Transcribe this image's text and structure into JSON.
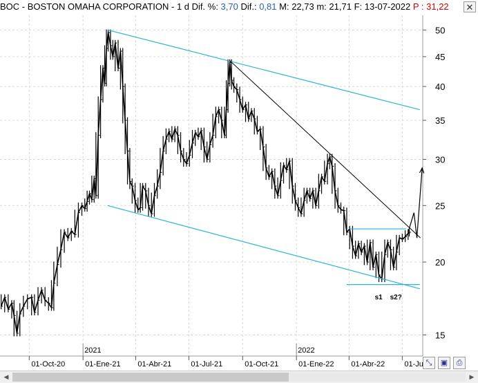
{
  "header": {
    "symbol": "BOC",
    "separator": " - ",
    "name": "BOSTON OMAHA CORPORATION",
    "sep2": " - ",
    "period": "1 d",
    "dif_pct_label": " Dif. %: ",
    "dif_pct_value": "3,70",
    "dif_label": " Dif.: ",
    "dif_value": "0,81",
    "m_label": " M: ",
    "m_value": "22,73",
    "m_label2": " m: ",
    "m2_value": "21,71",
    "f_label": " F: ",
    "f_value": "13-07-2022",
    "p_label": " P : ",
    "p_value": "31,22"
  },
  "colors": {
    "price": "#000000",
    "channel": "#2ab4d9",
    "trendline": "#000000",
    "grid": "#d8d8d8",
    "blue_value": "#2b5fb3",
    "red_value": "#d40000"
  },
  "icons": {
    "close": "close-icon",
    "zoom": "zoom-icon",
    "save": "save-icon",
    "print": "print-icon"
  },
  "chart_data": {
    "type": "line",
    "scale": "log",
    "ylim": [
      13.8,
      53
    ],
    "y_ticks": [
      15,
      20,
      25,
      30,
      35,
      40,
      45,
      50
    ],
    "y_tick_labels": [
      "15",
      "20",
      "25",
      "30",
      "35",
      "40",
      "45",
      "50"
    ],
    "xlim": [
      "2020-08-12",
      "2022-08-05"
    ],
    "x_ticks": [
      "2020-10-01",
      "2021-01-01",
      "2021-04-01",
      "2021-07-01",
      "2021-10-01",
      "2022-01-01",
      "2022-04-01",
      "2022-07-01"
    ],
    "x_tick_labels": [
      "01-Oct-20",
      "01-Ene-21",
      "01-Abr-21",
      "01-Jul-21",
      "01-Oct-21",
      "01-Ene-22",
      "01-Abr-22",
      "01-Ju"
    ],
    "year_markers": [
      {
        "date": "2021-01-01",
        "label": "2021"
      },
      {
        "date": "2022-01-01",
        "label": "2022"
      }
    ],
    "grid": true,
    "series": [
      {
        "points": [
          [
            "2020-08-14",
            16.8
          ],
          [
            "2020-08-20",
            17.4
          ],
          [
            "2020-08-26",
            16.6
          ],
          [
            "2020-09-01",
            17.0
          ],
          [
            "2020-09-05",
            16.2
          ],
          [
            "2020-09-10",
            15.1
          ],
          [
            "2020-09-15",
            16.3
          ],
          [
            "2020-09-21",
            16.8
          ],
          [
            "2020-09-28",
            17.3
          ],
          [
            "2020-10-05",
            17.4
          ],
          [
            "2020-10-10",
            16.4
          ],
          [
            "2020-10-16",
            17.2
          ],
          [
            "2020-10-22",
            17.9
          ],
          [
            "2020-10-28",
            17.2
          ],
          [
            "2020-11-03",
            17.0
          ],
          [
            "2020-11-08",
            16.7
          ],
          [
            "2020-11-12",
            18.4
          ],
          [
            "2020-11-18",
            19.8
          ],
          [
            "2020-11-24",
            21.0
          ],
          [
            "2020-11-30",
            22.5
          ],
          [
            "2020-12-06",
            22.0
          ],
          [
            "2020-12-12",
            22.6
          ],
          [
            "2020-12-18",
            22.3
          ],
          [
            "2020-12-24",
            24.3
          ],
          [
            "2020-12-30",
            25.0
          ],
          [
            "2021-01-04",
            24.7
          ],
          [
            "2021-01-08",
            25.4
          ],
          [
            "2021-01-12",
            26.2
          ],
          [
            "2021-01-16",
            25.6
          ],
          [
            "2021-01-20",
            27.8
          ],
          [
            "2021-01-23",
            26.0
          ],
          [
            "2021-01-27",
            33.0
          ],
          [
            "2021-01-31",
            38.0
          ],
          [
            "2021-02-04",
            43.0
          ],
          [
            "2021-02-07",
            40.5
          ],
          [
            "2021-02-10",
            46.5
          ],
          [
            "2021-02-13",
            49.5
          ],
          [
            "2021-02-17",
            47.0
          ],
          [
            "2021-02-21",
            45.0
          ],
          [
            "2021-02-25",
            47.5
          ],
          [
            "2021-03-02",
            43.0
          ],
          [
            "2021-03-06",
            46.0
          ],
          [
            "2021-03-10",
            40.0
          ],
          [
            "2021-03-14",
            35.0
          ],
          [
            "2021-03-18",
            31.0
          ],
          [
            "2021-03-22",
            27.5
          ],
          [
            "2021-03-26",
            27.0
          ],
          [
            "2021-03-31",
            25.5
          ],
          [
            "2021-04-05",
            24.6
          ],
          [
            "2021-04-09",
            24.8
          ],
          [
            "2021-04-13",
            27.0
          ],
          [
            "2021-04-18",
            26.5
          ],
          [
            "2021-04-23",
            25.0
          ],
          [
            "2021-04-28",
            24.2
          ],
          [
            "2021-05-03",
            26.0
          ],
          [
            "2021-05-08",
            27.0
          ],
          [
            "2021-05-13",
            28.5
          ],
          [
            "2021-05-18",
            31.0
          ],
          [
            "2021-05-23",
            32.5
          ],
          [
            "2021-05-28",
            33.5
          ],
          [
            "2021-06-02",
            32.5
          ],
          [
            "2021-06-07",
            33.8
          ],
          [
            "2021-06-12",
            33.0
          ],
          [
            "2021-06-17",
            31.0
          ],
          [
            "2021-06-22",
            30.0
          ],
          [
            "2021-06-27",
            29.5
          ],
          [
            "2021-07-02",
            30.5
          ],
          [
            "2021-07-07",
            32.0
          ],
          [
            "2021-07-12",
            33.3
          ],
          [
            "2021-07-17",
            32.8
          ],
          [
            "2021-07-22",
            33.6
          ],
          [
            "2021-07-27",
            31.5
          ],
          [
            "2021-08-01",
            30.0
          ],
          [
            "2021-08-06",
            31.8
          ],
          [
            "2021-08-11",
            33.0
          ],
          [
            "2021-08-16",
            35.5
          ],
          [
            "2021-08-21",
            36.5
          ],
          [
            "2021-08-26",
            35.0
          ],
          [
            "2021-08-31",
            33.0
          ],
          [
            "2021-09-03",
            36.5
          ],
          [
            "2021-09-06",
            40.5
          ],
          [
            "2021-09-09",
            44.0
          ],
          [
            "2021-09-12",
            41.0
          ],
          [
            "2021-09-16",
            40.0
          ],
          [
            "2021-09-21",
            39.5
          ],
          [
            "2021-09-26",
            38.0
          ],
          [
            "2021-10-01",
            36.5
          ],
          [
            "2021-10-06",
            37.2
          ],
          [
            "2021-10-11",
            35.2
          ],
          [
            "2021-10-16",
            36.3
          ],
          [
            "2021-10-21",
            35.2
          ],
          [
            "2021-10-26",
            33.5
          ],
          [
            "2021-10-31",
            33.8
          ],
          [
            "2021-11-05",
            31.5
          ],
          [
            "2021-11-10",
            29.0
          ],
          [
            "2021-11-15",
            28.0
          ],
          [
            "2021-11-20",
            28.6
          ],
          [
            "2021-11-25",
            27.0
          ],
          [
            "2021-11-30",
            26.0
          ],
          [
            "2021-12-05",
            27.6
          ],
          [
            "2021-12-10",
            29.3
          ],
          [
            "2021-12-15",
            28.8
          ],
          [
            "2021-12-20",
            29.8
          ],
          [
            "2021-12-25",
            27.0
          ],
          [
            "2021-12-30",
            25.5
          ],
          [
            "2022-01-04",
            24.8
          ],
          [
            "2022-01-09",
            24.2
          ],
          [
            "2022-01-14",
            25.5
          ],
          [
            "2022-01-19",
            26.5
          ],
          [
            "2022-01-24",
            25.7
          ],
          [
            "2022-01-29",
            26.5
          ],
          [
            "2022-02-03",
            25.0
          ],
          [
            "2022-02-08",
            26.5
          ],
          [
            "2022-02-13",
            28.0
          ],
          [
            "2022-02-18",
            27.5
          ],
          [
            "2022-02-23",
            29.5
          ],
          [
            "2022-02-27",
            30.3
          ],
          [
            "2022-03-03",
            29.2
          ],
          [
            "2022-03-08",
            26.5
          ],
          [
            "2022-03-13",
            25.0
          ],
          [
            "2022-03-18",
            24.6
          ],
          [
            "2022-03-23",
            24.5
          ],
          [
            "2022-03-28",
            22.5
          ],
          [
            "2022-04-02",
            22.8
          ],
          [
            "2022-04-07",
            21.3
          ],
          [
            "2022-04-12",
            20.5
          ],
          [
            "2022-04-17",
            21.5
          ],
          [
            "2022-04-22",
            20.8
          ],
          [
            "2022-04-27",
            21.3
          ],
          [
            "2022-05-02",
            20.0
          ],
          [
            "2022-05-07",
            21.6
          ],
          [
            "2022-05-12",
            19.6
          ],
          [
            "2022-05-17",
            20.6
          ],
          [
            "2022-05-22",
            19.0
          ],
          [
            "2022-05-27",
            18.7
          ],
          [
            "2022-06-01",
            20.6
          ],
          [
            "2022-06-06",
            21.6
          ],
          [
            "2022-06-11",
            21.0
          ],
          [
            "2022-06-16",
            19.6
          ],
          [
            "2022-06-21",
            20.8
          ],
          [
            "2022-06-26",
            22.0
          ],
          [
            "2022-07-01",
            21.9
          ],
          [
            "2022-07-06",
            22.1
          ],
          [
            "2022-07-11",
            22.4
          ],
          [
            "2022-07-13",
            22.5
          ]
        ]
      }
    ],
    "drawings": [
      {
        "kind": "channel-upper",
        "from": [
          "2021-02-12",
          50.0
        ],
        "to": [
          "2022-07-31",
          36.5
        ]
      },
      {
        "kind": "channel-lower",
        "from": [
          "2021-02-12",
          25.0
        ],
        "to": [
          "2022-07-31",
          18.0
        ]
      },
      {
        "kind": "trendline",
        "from": [
          "2021-09-09",
          44.3
        ],
        "to": [
          "2022-08-01",
          22.0
        ]
      },
      {
        "kind": "resistance",
        "from": [
          "2022-04-01",
          22.8
        ],
        "to": [
          "2022-07-08",
          22.8
        ]
      },
      {
        "kind": "support",
        "from": [
          "2022-03-28",
          18.3
        ],
        "to": [
          "2022-07-31",
          18.3
        ]
      },
      {
        "kind": "projection",
        "from": [
          "2022-07-11",
          22.5
        ],
        "to": [
          "2022-07-21",
          24.3
        ]
      },
      {
        "kind": "projection",
        "from": [
          "2022-07-21",
          24.3
        ],
        "to": [
          "2022-07-26",
          22.0
        ]
      },
      {
        "kind": "projection",
        "from": [
          "2022-07-26",
          22.0
        ],
        "to": [
          "2022-08-04",
          29.0
        ]
      }
    ],
    "annotations": [
      {
        "date": "2022-05-15",
        "value": 17.45,
        "text": "s1"
      },
      {
        "date": "2022-06-10",
        "value": 17.45,
        "text": "s2?"
      }
    ]
  }
}
